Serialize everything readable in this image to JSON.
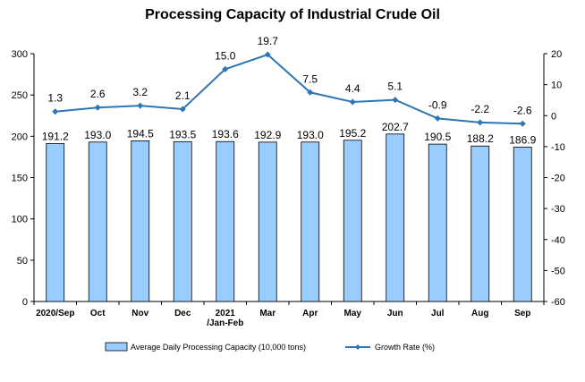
{
  "chart_data": {
    "type": "bar+line",
    "title": "Processing Capacity of Industrial Crude Oil",
    "categories": [
      "2020/Sep",
      "Oct",
      "Nov",
      "Dec",
      "2021\n/Jan-Feb",
      "Mar",
      "Apr",
      "May",
      "Jun",
      "Jul",
      "Aug",
      "Sep"
    ],
    "series": [
      {
        "name": "Average Daily Processing Capacity (10,000 tons)",
        "kind": "bar",
        "axis": "left",
        "color": "#99CCFF",
        "labels": [
          "191.2",
          "193.0",
          "194.5",
          "193.5",
          "193.6",
          "192.9",
          "193.0",
          "195.2",
          "202.7",
          "190.5",
          "188.2",
          "186.9"
        ],
        "values": [
          191.2,
          193.0,
          194.5,
          193.5,
          193.6,
          192.9,
          193.0,
          195.2,
          202.7,
          190.5,
          188.2,
          186.9
        ]
      },
      {
        "name": "Growth Rate (%)",
        "kind": "line",
        "axis": "right",
        "color": "#2E75B6",
        "labels": [
          "1.3",
          "2.6",
          "3.2",
          "2.1",
          "15.0",
          "19.7",
          "7.5",
          "4.4",
          "5.1",
          "-0.9",
          "-2.2",
          "-2.6"
        ],
        "values": [
          1.3,
          2.6,
          3.2,
          2.1,
          15.0,
          19.7,
          7.5,
          4.4,
          5.1,
          -0.9,
          -2.2,
          -2.6
        ]
      }
    ],
    "y_left": {
      "range": [
        0,
        300
      ],
      "ticks": [
        "0",
        "50",
        "100",
        "150",
        "200",
        "250",
        "300"
      ]
    },
    "y_right": {
      "range": [
        -60,
        20
      ],
      "ticks": [
        "-60",
        "-50",
        "-40",
        "-30",
        "-20",
        "-10",
        "0",
        "10",
        "20"
      ]
    },
    "grid": false,
    "legend_position": "bottom"
  }
}
